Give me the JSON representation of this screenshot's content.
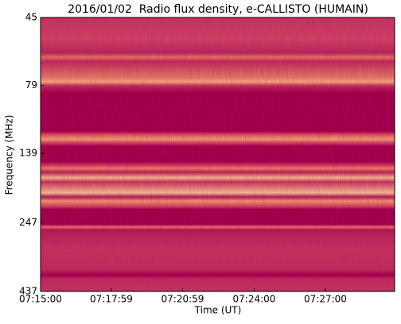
{
  "chart_data": {
    "type": "heatmap",
    "title": "2016/01/02  Radio flux density, e-CALLISTO (HUMAIN)",
    "xlabel": "Time (UT)",
    "ylabel": "Frequency (MHz)",
    "xlim": [
      "07:15:00",
      "07:29:55"
    ],
    "xticks": [
      "07:15:00",
      "07:17:59",
      "07:20:59",
      "07:24:00",
      "07:27:00"
    ],
    "ylim": [
      45,
      437
    ],
    "yticks": [
      45,
      79,
      139,
      247,
      437
    ],
    "yscale": "log",
    "yinverted": true
  }
}
